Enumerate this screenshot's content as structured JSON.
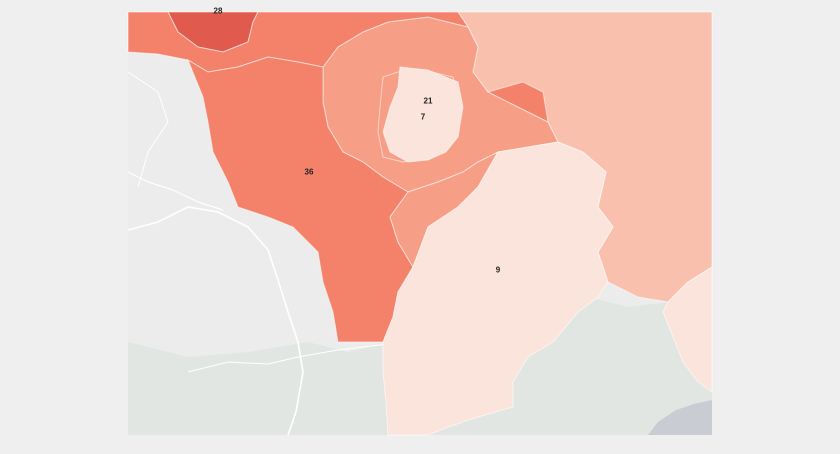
{
  "map": {
    "colors": {
      "background": "#ececec",
      "terrain": "#e2e6e2",
      "road": "#ffffff",
      "water": "#c9cdd3",
      "choropleth_darkest": "#e05a4e",
      "choropleth_dark": "#f4826b",
      "choropleth_mid": "#f79f86",
      "choropleth_light": "#f8c0ad",
      "choropleth_lightest": "#fbe4db"
    },
    "regions": [
      {
        "id": "region-top-left",
        "label": "28",
        "color": "#e05a4e"
      },
      {
        "id": "region-36",
        "label": "36",
        "color": "#f4826b"
      },
      {
        "id": "region-21",
        "label": "21",
        "color": "#f79f86"
      },
      {
        "id": "region-7",
        "label": "7",
        "color": "#fbe4db"
      },
      {
        "id": "region-9",
        "label": "9",
        "color": "#fbe4db"
      }
    ]
  }
}
